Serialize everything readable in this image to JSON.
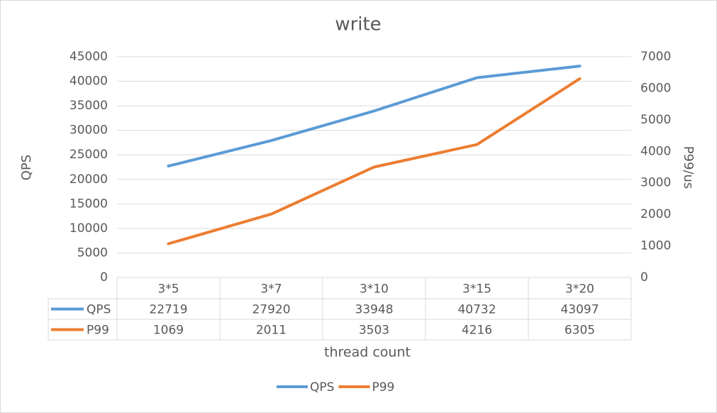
{
  "chart_data": {
    "type": "line",
    "title": "write",
    "x_label": "thread count",
    "y_label": "QPS",
    "y2_label": "P99/us",
    "categories": [
      "3*5",
      "3*7",
      "3*10",
      "3*15",
      "3*20"
    ],
    "series": [
      {
        "name": "QPS",
        "color": "#5b9bd5",
        "values": [
          22719,
          27920,
          33948,
          40732,
          43097
        ]
      },
      {
        "name": "P99",
        "color": "#ed7d31",
        "values": [
          1069,
          2011,
          3503,
          4216,
          6305
        ],
        "axis": "y2"
      }
    ],
    "ylim": [
      0,
      45000
    ],
    "yticks": [
      0,
      5000,
      10000,
      15000,
      20000,
      25000,
      30000,
      35000,
      40000,
      45000
    ],
    "y2lim": [
      0,
      7000
    ],
    "y2ticks": [
      0,
      1000,
      2000,
      3000,
      4000,
      5000,
      6000,
      7000
    ],
    "grid": true,
    "legend": "bottom",
    "data_table": true
  }
}
